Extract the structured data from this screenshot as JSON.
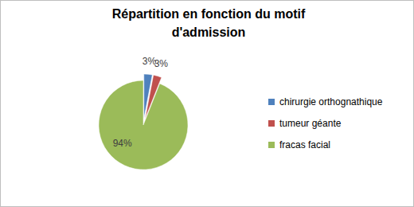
{
  "chart_data": {
    "type": "pie",
    "title": "Répartition en fonction du motif d'admission",
    "categories": [
      "chirurgie orthognathique",
      "tumeur géante",
      "fracas facial"
    ],
    "values": [
      3,
      3,
      94
    ],
    "value_labels": [
      "3%",
      "3%",
      "94%"
    ],
    "colors": [
      "#4f81bd",
      "#c0504d",
      "#9bbb59"
    ],
    "data_labels": true,
    "legend": "right"
  }
}
